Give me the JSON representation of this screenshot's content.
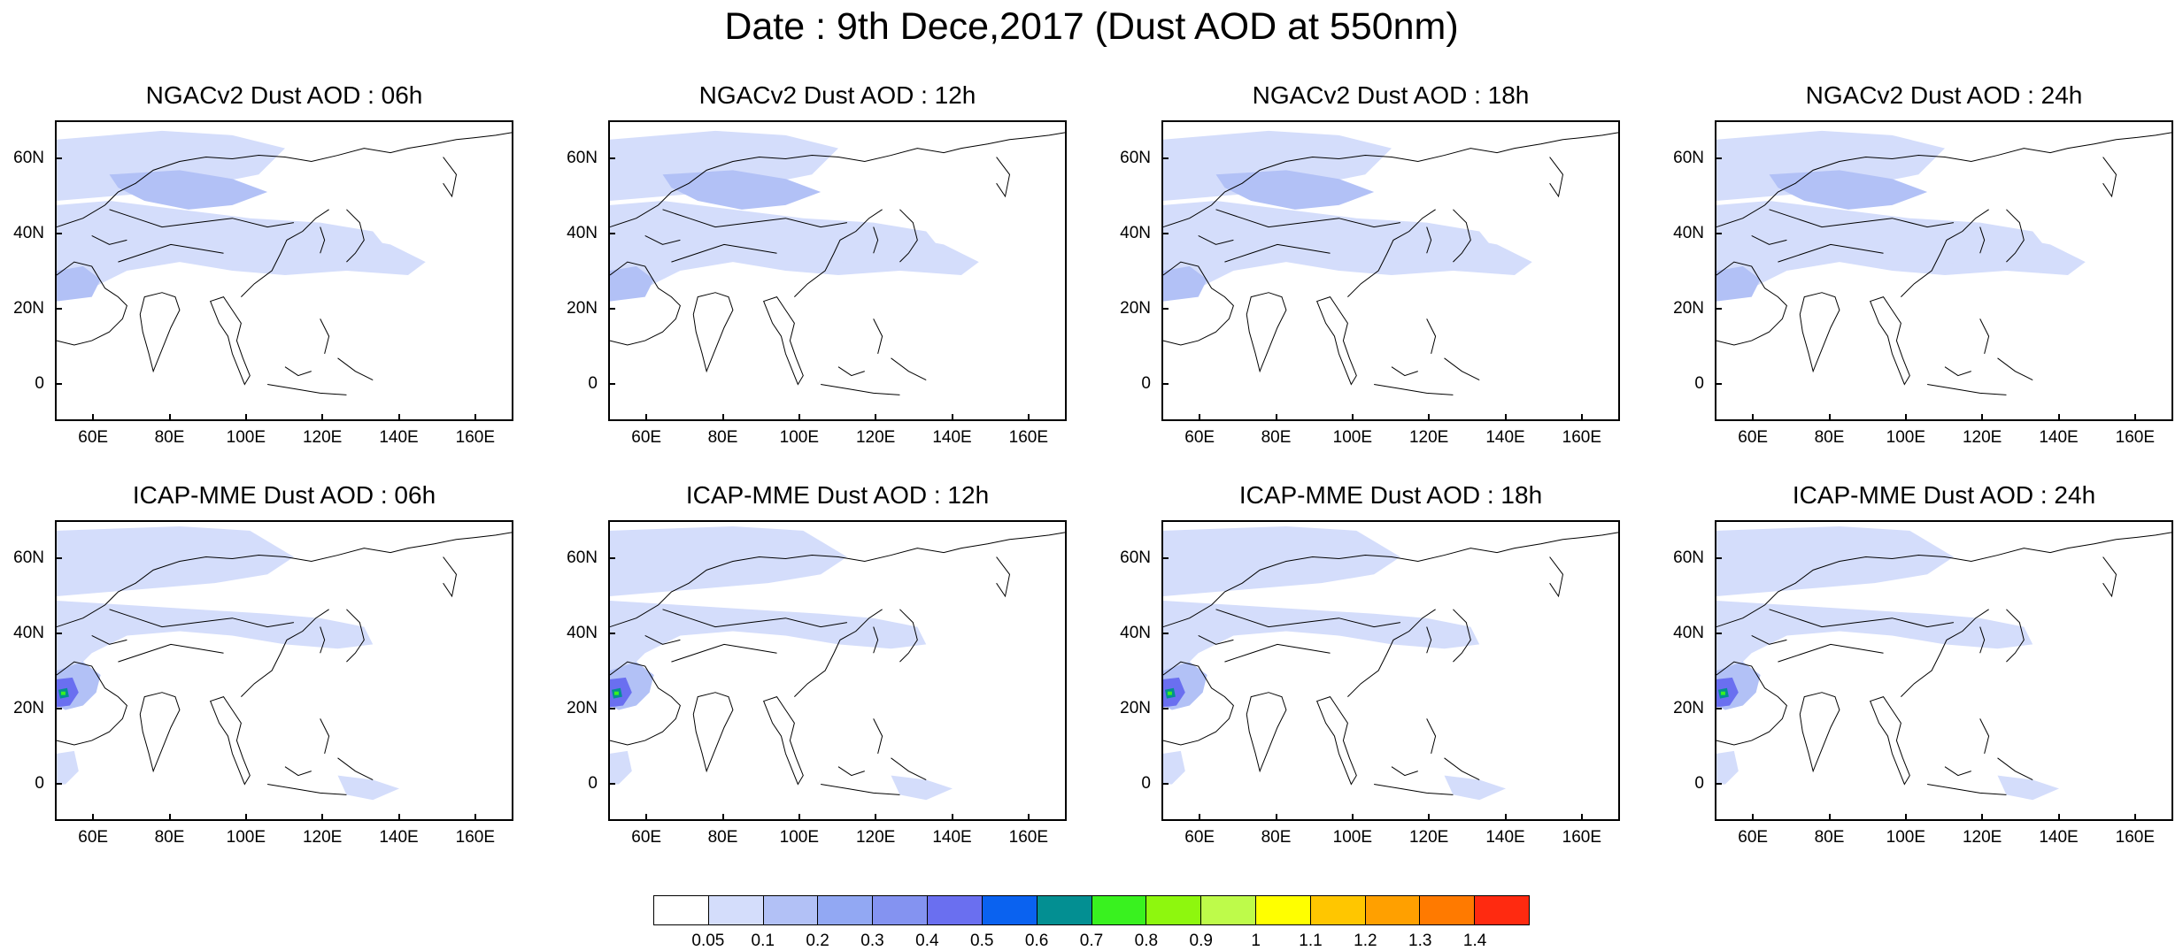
{
  "title": "Date : 9th Dece,2017 (Dust AOD at 550nm)",
  "panels": [
    {
      "title": "NGACv2 Dust AOD : 06h",
      "model": "ngac"
    },
    {
      "title": "NGACv2 Dust AOD : 12h",
      "model": "ngac"
    },
    {
      "title": "NGACv2 Dust AOD : 18h",
      "model": "ngac"
    },
    {
      "title": "NGACv2 Dust AOD : 24h",
      "model": "ngac"
    },
    {
      "title": "ICAP-MME Dust AOD : 06h",
      "model": "icap"
    },
    {
      "title": "ICAP-MME Dust AOD : 12h",
      "model": "icap"
    },
    {
      "title": "ICAP-MME Dust AOD : 18h",
      "model": "icap"
    },
    {
      "title": "ICAP-MME Dust AOD : 24h",
      "model": "icap"
    }
  ],
  "lat_labels": [
    "60N",
    "40N",
    "20N",
    "0"
  ],
  "lon_labels": [
    "60E",
    "80E",
    "100E",
    "120E",
    "140E",
    "160E"
  ],
  "colorbar": {
    "labels": [
      "0.05",
      "0.1",
      "0.2",
      "0.3",
      "0.4",
      "0.5",
      "0.6",
      "0.7",
      "0.8",
      "0.9",
      "1",
      "1.1",
      "1.2",
      "1.3",
      "1.4"
    ],
    "colors": [
      "#ffffff",
      "#d4ddfb",
      "#b2c1f6",
      "#92a8f3",
      "#8493f1",
      "#6a6ff0",
      "#0a62f0",
      "#038f92",
      "#39f21f",
      "#8ef70e",
      "#befb4a",
      "#ffff00",
      "#ffc600",
      "#ffa000",
      "#ff7a00",
      "#ff2a10"
    ]
  }
}
